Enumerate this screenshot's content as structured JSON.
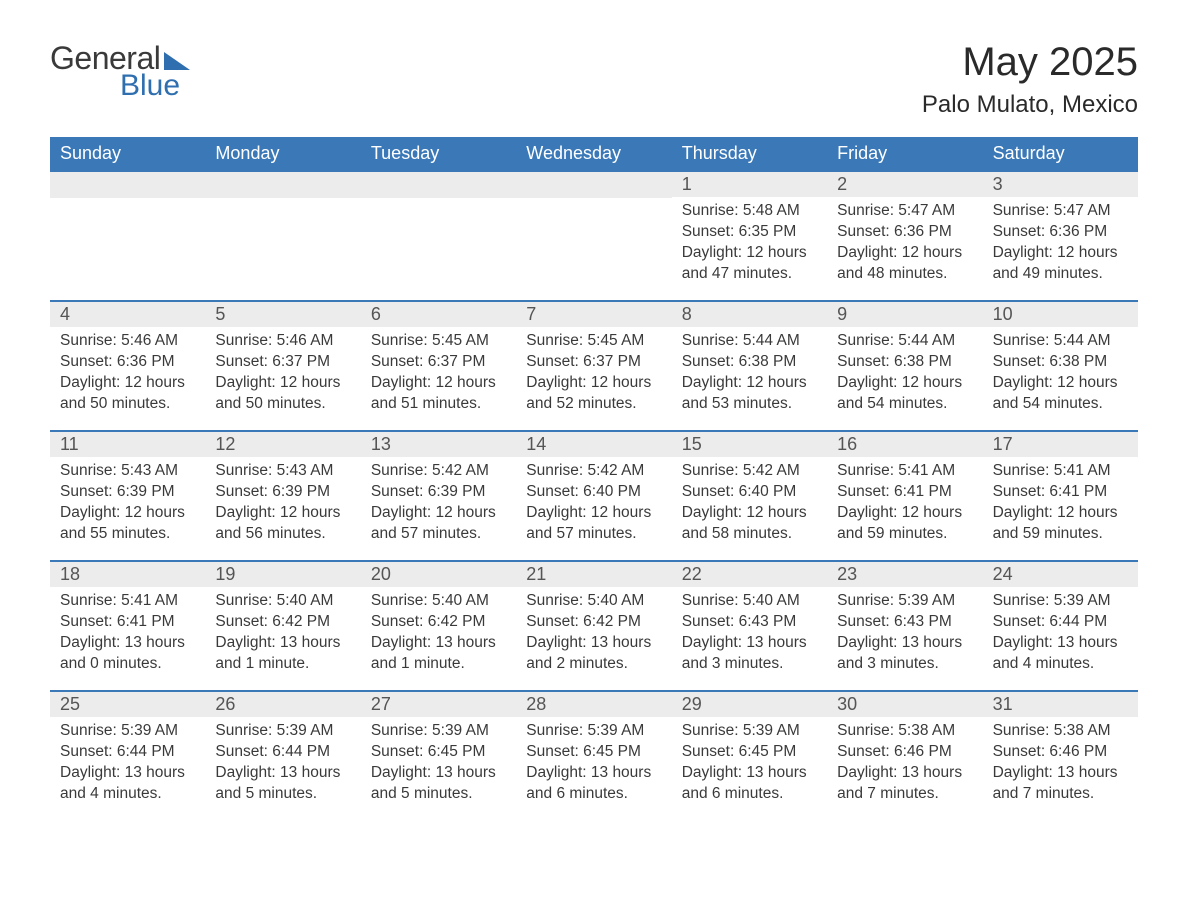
{
  "logo": {
    "line1": "General",
    "line2": "Blue",
    "brand_color": "#2f6fb0"
  },
  "title": "May 2025",
  "location": "Palo Mulato, Mexico",
  "colors": {
    "header_bg": "#3a78b8",
    "header_text": "#ffffff",
    "daynum_bg": "#ececec",
    "daynum_text": "#555555",
    "body_text": "#3a3a3a",
    "row_border": "#3a78b8",
    "page_bg": "#ffffff"
  },
  "weekdays": [
    "Sunday",
    "Monday",
    "Tuesday",
    "Wednesday",
    "Thursday",
    "Friday",
    "Saturday"
  ],
  "weeks": [
    [
      null,
      null,
      null,
      null,
      {
        "n": "1",
        "sunrise": "5:48 AM",
        "sunset": "6:35 PM",
        "daylight": "12 hours and 47 minutes."
      },
      {
        "n": "2",
        "sunrise": "5:47 AM",
        "sunset": "6:36 PM",
        "daylight": "12 hours and 48 minutes."
      },
      {
        "n": "3",
        "sunrise": "5:47 AM",
        "sunset": "6:36 PM",
        "daylight": "12 hours and 49 minutes."
      }
    ],
    [
      {
        "n": "4",
        "sunrise": "5:46 AM",
        "sunset": "6:36 PM",
        "daylight": "12 hours and 50 minutes."
      },
      {
        "n": "5",
        "sunrise": "5:46 AM",
        "sunset": "6:37 PM",
        "daylight": "12 hours and 50 minutes."
      },
      {
        "n": "6",
        "sunrise": "5:45 AM",
        "sunset": "6:37 PM",
        "daylight": "12 hours and 51 minutes."
      },
      {
        "n": "7",
        "sunrise": "5:45 AM",
        "sunset": "6:37 PM",
        "daylight": "12 hours and 52 minutes."
      },
      {
        "n": "8",
        "sunrise": "5:44 AM",
        "sunset": "6:38 PM",
        "daylight": "12 hours and 53 minutes."
      },
      {
        "n": "9",
        "sunrise": "5:44 AM",
        "sunset": "6:38 PM",
        "daylight": "12 hours and 54 minutes."
      },
      {
        "n": "10",
        "sunrise": "5:44 AM",
        "sunset": "6:38 PM",
        "daylight": "12 hours and 54 minutes."
      }
    ],
    [
      {
        "n": "11",
        "sunrise": "5:43 AM",
        "sunset": "6:39 PM",
        "daylight": "12 hours and 55 minutes."
      },
      {
        "n": "12",
        "sunrise": "5:43 AM",
        "sunset": "6:39 PM",
        "daylight": "12 hours and 56 minutes."
      },
      {
        "n": "13",
        "sunrise": "5:42 AM",
        "sunset": "6:39 PM",
        "daylight": "12 hours and 57 minutes."
      },
      {
        "n": "14",
        "sunrise": "5:42 AM",
        "sunset": "6:40 PM",
        "daylight": "12 hours and 57 minutes."
      },
      {
        "n": "15",
        "sunrise": "5:42 AM",
        "sunset": "6:40 PM",
        "daylight": "12 hours and 58 minutes."
      },
      {
        "n": "16",
        "sunrise": "5:41 AM",
        "sunset": "6:41 PM",
        "daylight": "12 hours and 59 minutes."
      },
      {
        "n": "17",
        "sunrise": "5:41 AM",
        "sunset": "6:41 PM",
        "daylight": "12 hours and 59 minutes."
      }
    ],
    [
      {
        "n": "18",
        "sunrise": "5:41 AM",
        "sunset": "6:41 PM",
        "daylight": "13 hours and 0 minutes."
      },
      {
        "n": "19",
        "sunrise": "5:40 AM",
        "sunset": "6:42 PM",
        "daylight": "13 hours and 1 minute."
      },
      {
        "n": "20",
        "sunrise": "5:40 AM",
        "sunset": "6:42 PM",
        "daylight": "13 hours and 1 minute."
      },
      {
        "n": "21",
        "sunrise": "5:40 AM",
        "sunset": "6:42 PM",
        "daylight": "13 hours and 2 minutes."
      },
      {
        "n": "22",
        "sunrise": "5:40 AM",
        "sunset": "6:43 PM",
        "daylight": "13 hours and 3 minutes."
      },
      {
        "n": "23",
        "sunrise": "5:39 AM",
        "sunset": "6:43 PM",
        "daylight": "13 hours and 3 minutes."
      },
      {
        "n": "24",
        "sunrise": "5:39 AM",
        "sunset": "6:44 PM",
        "daylight": "13 hours and 4 minutes."
      }
    ],
    [
      {
        "n": "25",
        "sunrise": "5:39 AM",
        "sunset": "6:44 PM",
        "daylight": "13 hours and 4 minutes."
      },
      {
        "n": "26",
        "sunrise": "5:39 AM",
        "sunset": "6:44 PM",
        "daylight": "13 hours and 5 minutes."
      },
      {
        "n": "27",
        "sunrise": "5:39 AM",
        "sunset": "6:45 PM",
        "daylight": "13 hours and 5 minutes."
      },
      {
        "n": "28",
        "sunrise": "5:39 AM",
        "sunset": "6:45 PM",
        "daylight": "13 hours and 6 minutes."
      },
      {
        "n": "29",
        "sunrise": "5:39 AM",
        "sunset": "6:45 PM",
        "daylight": "13 hours and 6 minutes."
      },
      {
        "n": "30",
        "sunrise": "5:38 AM",
        "sunset": "6:46 PM",
        "daylight": "13 hours and 7 minutes."
      },
      {
        "n": "31",
        "sunrise": "5:38 AM",
        "sunset": "6:46 PM",
        "daylight": "13 hours and 7 minutes."
      }
    ]
  ],
  "labels": {
    "sunrise_prefix": "Sunrise: ",
    "sunset_prefix": "Sunset: ",
    "daylight_prefix": "Daylight: "
  }
}
